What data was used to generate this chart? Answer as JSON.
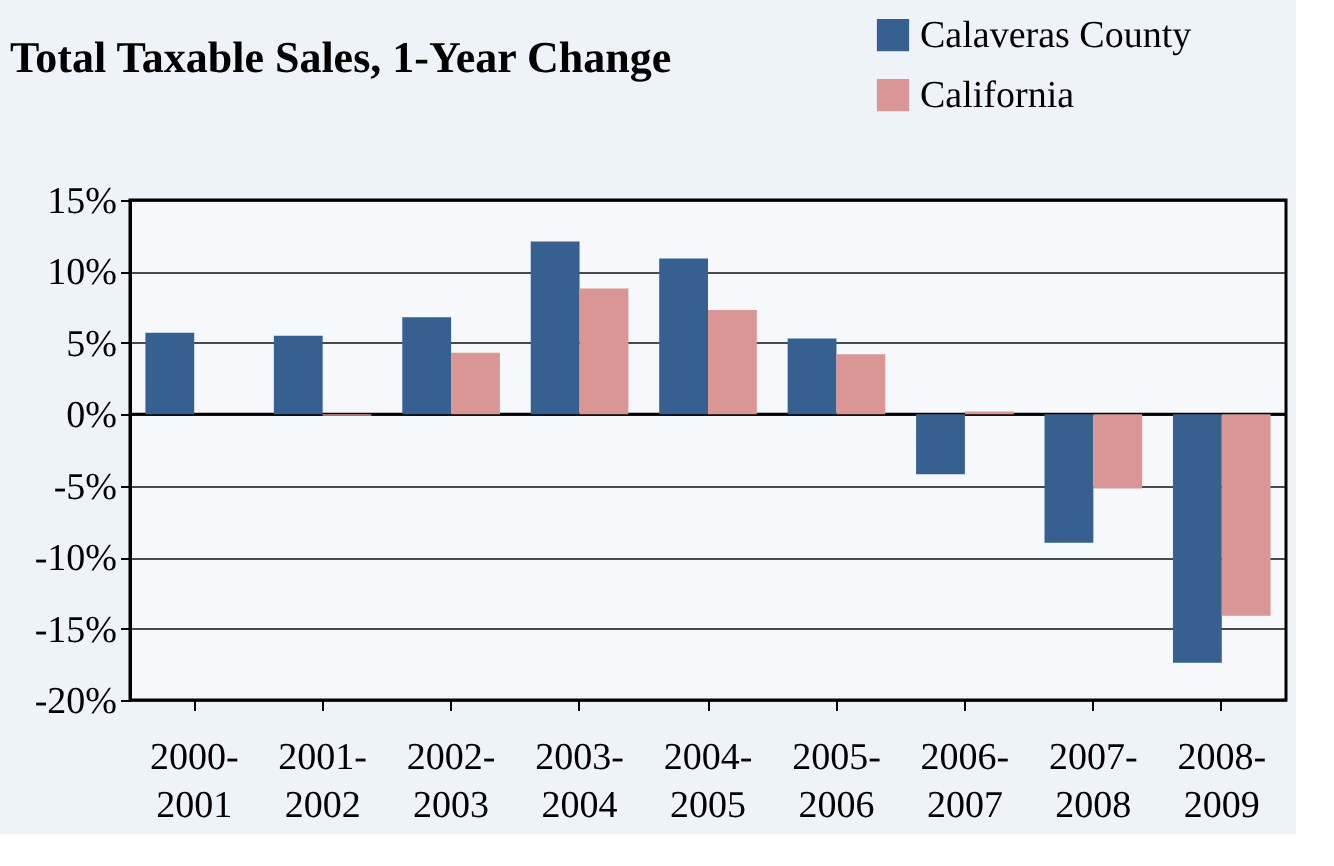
{
  "chart_data": {
    "type": "bar",
    "title": "Total Taxable Sales, 1-Year Change",
    "categories": [
      "2000-2001",
      "2001-2002",
      "2002-2003",
      "2003-2004",
      "2004-2005",
      "2005-2006",
      "2006-2007",
      "2007-2008",
      "2008-2009"
    ],
    "series": [
      {
        "name": "Calaveras County",
        "color": "#35608f",
        "values": [
          5.7,
          5.5,
          6.8,
          12.1,
          10.9,
          5.3,
          -4.2,
          -9.0,
          -17.4
        ]
      },
      {
        "name": "California",
        "color": "#d99694",
        "values": [
          null,
          -0.1,
          4.3,
          8.8,
          7.3,
          4.2,
          0.2,
          -5.2,
          -14.1
        ]
      }
    ],
    "ylim": [
      -20,
      15
    ],
    "yticks": [
      {
        "value": -20,
        "label": "-20%"
      },
      {
        "value": -15,
        "label": "-15%"
      },
      {
        "value": -10,
        "label": "-10%"
      },
      {
        "value": -5,
        "label": "-5%"
      },
      {
        "value": 0,
        "label": "0%"
      },
      {
        "value": 5,
        "label": "5%"
      },
      {
        "value": 10,
        "label": "10%"
      },
      {
        "value": 15,
        "label": "15%"
      }
    ],
    "grid": "y",
    "legend": "top right"
  }
}
